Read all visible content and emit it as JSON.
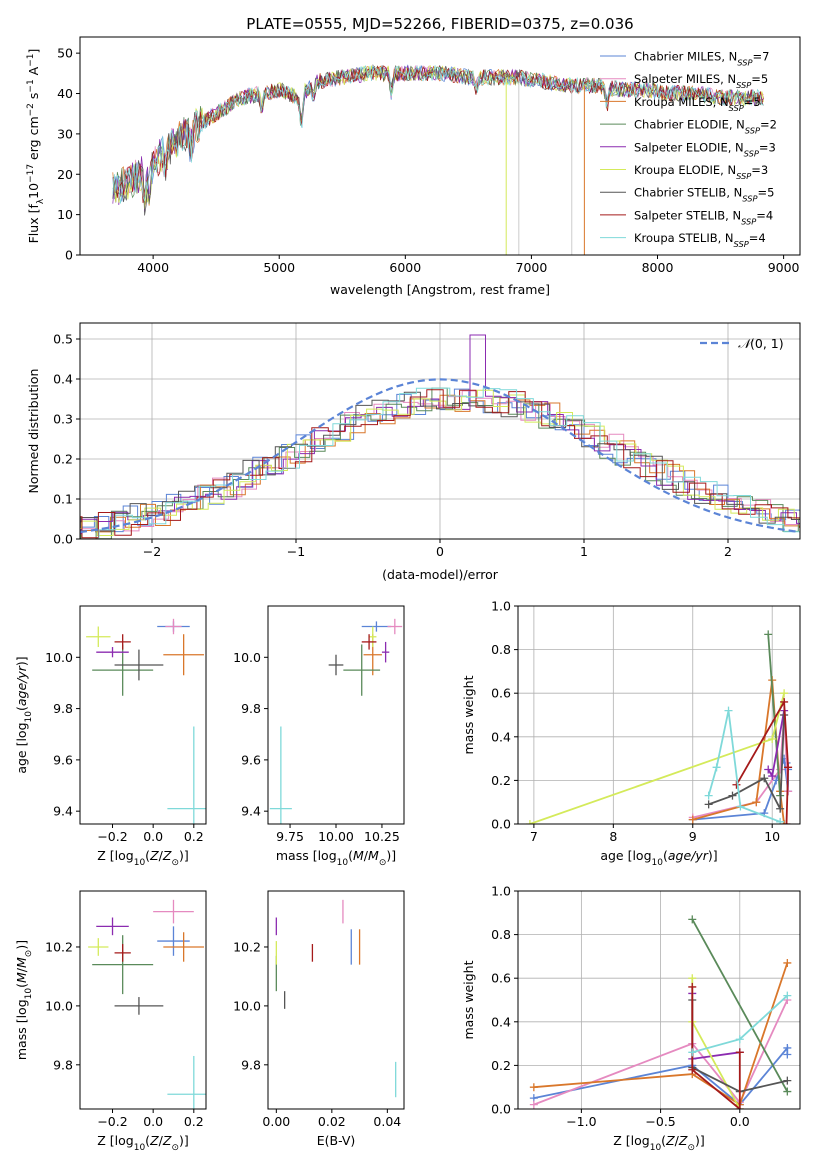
{
  "figure": {
    "title": "PLATE=0555, MJD=52266, FIBERID=0375, z=0.036"
  },
  "series_styles": [
    {
      "name": "Chabrier MILES",
      "nssp": 7,
      "color": "#5b84d6"
    },
    {
      "name": "Salpeter MILES",
      "nssp": 5,
      "color": "#e58ac0"
    },
    {
      "name": "Kroupa MILES",
      "nssp": 5,
      "color": "#d9772b"
    },
    {
      "name": "Chabrier ELODIE",
      "nssp": 2,
      "color": "#5a8a5a"
    },
    {
      "name": "Salpeter ELODIE",
      "nssp": 3,
      "color": "#8b2bb0"
    },
    {
      "name": "Kroupa ELODIE",
      "nssp": 3,
      "color": "#d4ea5a"
    },
    {
      "name": "Chabrier STELIB",
      "nssp": 5,
      "color": "#555555"
    },
    {
      "name": "Salpeter STELIB",
      "nssp": 4,
      "color": "#a51a1a"
    },
    {
      "name": "Kroupa STELIB",
      "nssp": 4,
      "color": "#7fd9d9"
    }
  ],
  "chart_data": [
    {
      "id": "spectrum",
      "type": "line",
      "xlabel": "wavelength [Angstrom, rest frame]",
      "ylabel": "Flux [f_λ10^-17 erg cm^-2 s^-1 A^-1]",
      "xlim": [
        3420,
        9130
      ],
      "ylim": [
        0,
        54
      ],
      "xticks": [
        4000,
        5000,
        6000,
        7000,
        8000,
        9000
      ],
      "yticks": [
        0,
        10,
        20,
        30,
        40,
        50
      ],
      "grid": false,
      "legend": "upper right",
      "legend_entries": [
        "Chabrier MILES, NSSP=7",
        "Salpeter MILES, NSSP=5",
        "Kroupa MILES, NSSP=5",
        "Chabrier ELODIE, NSSP=2",
        "Salpeter ELODIE, NSSP=3",
        "Kroupa ELODIE, NSSP=3",
        "Chabrier STELIB, NSSP=5",
        "Salpeter STELIB, NSSP=4",
        "Kroupa STELIB, NSSP=4"
      ],
      "continuum": {
        "x": [
          3680,
          3800,
          3950,
          4100,
          4250,
          4400,
          4550,
          4700,
          4850,
          5000,
          5150,
          5300,
          5500,
          5700,
          5900,
          6100,
          6300,
          6500,
          6700,
          6900,
          7100,
          7300,
          7500,
          7700,
          7900,
          8100,
          8300,
          8500,
          8700,
          8850
        ],
        "y": [
          16,
          18,
          21,
          26,
          30,
          33,
          36,
          39,
          40,
          41,
          39,
          43,
          44,
          45,
          45,
          45,
          45,
          44,
          44,
          44,
          43,
          42,
          42,
          41,
          41,
          40,
          40,
          39,
          39,
          39
        ]
      }
    },
    {
      "id": "residuals",
      "type": "step",
      "xlabel": "(data-model)/error",
      "ylabel": "Normed distribution",
      "xlim": [
        -2.5,
        2.5
      ],
      "ylim": [
        0,
        0.54
      ],
      "xticks": [
        -2,
        -1,
        0,
        1,
        2
      ],
      "yticks": [
        0.0,
        0.1,
        0.2,
        0.3,
        0.4,
        0.5
      ],
      "grid": true,
      "legend": "upper right",
      "legend_entries": [
        "N(0,1)"
      ],
      "gaussian": {
        "mu": 0,
        "sigma": 1
      }
    },
    {
      "id": "age_vs_Z",
      "type": "errorbar",
      "xlabel": "Z [log10(Z/Z⊙)]",
      "ylabel": "age  [log10(age/yr)]",
      "xlim": [
        -0.36,
        0.26
      ],
      "ylim": [
        9.35,
        10.2
      ],
      "xticks": [
        -0.2,
        0.0,
        0.2
      ],
      "yticks": [
        9.4,
        9.6,
        9.8,
        10.0
      ],
      "points": [
        {
          "x": 0.1,
          "y": 10.12,
          "xerr": 0.08,
          "yerr": 0.02
        },
        {
          "x": 0.1,
          "y": 10.12,
          "xerr": 0.04,
          "yerr": 0.03
        },
        {
          "x": 0.15,
          "y": 10.01,
          "xerr": 0.1,
          "yerr": 0.08
        },
        {
          "x": -0.15,
          "y": 9.95,
          "xerr": 0.15,
          "yerr": 0.1
        },
        {
          "x": -0.2,
          "y": 10.02,
          "xerr": 0.08,
          "yerr": 0.02
        },
        {
          "x": -0.27,
          "y": 10.08,
          "xerr": 0.06,
          "yerr": 0.04
        },
        {
          "x": -0.07,
          "y": 9.97,
          "xerr": 0.12,
          "yerr": 0.06
        },
        {
          "x": -0.15,
          "y": 10.06,
          "xerr": 0.04,
          "yerr": 0.03
        },
        {
          "x": 0.2,
          "y": 9.41,
          "xerr": 0.13,
          "yerr": 0.32
        }
      ]
    },
    {
      "id": "age_vs_mass",
      "type": "errorbar",
      "xlabel": "mass [log10(M/M⊙)]",
      "ylabel": "",
      "xlim": [
        9.63,
        10.37
      ],
      "ylim": [
        9.35,
        10.2
      ],
      "xticks": [
        9.75,
        10.0,
        10.25
      ],
      "yticks": [
        9.4,
        9.6,
        9.8,
        10.0
      ],
      "points": [
        {
          "x": 10.22,
          "y": 10.12,
          "xerr": 0.08,
          "yerr": 0.02
        },
        {
          "x": 10.32,
          "y": 10.12,
          "xerr": 0.04,
          "yerr": 0.03
        },
        {
          "x": 10.2,
          "y": 10.01,
          "xerr": 0.05,
          "yerr": 0.08
        },
        {
          "x": 10.14,
          "y": 9.95,
          "xerr": 0.1,
          "yerr": 0.1
        },
        {
          "x": 10.27,
          "y": 10.02,
          "xerr": 0.02,
          "yerr": 0.04
        },
        {
          "x": 10.2,
          "y": 10.08,
          "xerr": 0.02,
          "yerr": 0.04
        },
        {
          "x": 10.0,
          "y": 9.97,
          "xerr": 0.04,
          "yerr": 0.04
        },
        {
          "x": 10.18,
          "y": 10.06,
          "xerr": 0.04,
          "yerr": 0.03
        },
        {
          "x": 9.7,
          "y": 9.41,
          "xerr": 0.06,
          "yerr": 0.32
        }
      ]
    },
    {
      "id": "weight_vs_age",
      "type": "line",
      "xlabel": "age  [log10(age/yr)]",
      "ylabel": "mass weight",
      "xlim": [
        6.8,
        10.35
      ],
      "ylim": [
        0,
        1.0
      ],
      "xticks": [
        7,
        8,
        9,
        10
      ],
      "yticks": [
        0.0,
        0.2,
        0.4,
        0.6,
        0.8,
        1.0
      ],
      "grid": true,
      "series": [
        {
          "name": "Chabrier MILES",
          "x": [
            9.0,
            9.9,
            10.05,
            10.15,
            10.2,
            10.2,
            10.18
          ],
          "y": [
            0.02,
            0.05,
            0.2,
            0.3,
            0.15,
            0.25,
            0.28
          ]
        },
        {
          "name": "Salpeter MILES",
          "x": [
            9.0,
            9.8,
            10.1,
            10.15,
            10.2
          ],
          "y": [
            0.03,
            0.1,
            0.25,
            0.5,
            0.15
          ]
        },
        {
          "name": "Kroupa MILES",
          "x": [
            9.0,
            9.8,
            10.0,
            10.1,
            10.15
          ],
          "y": [
            0.02,
            0.1,
            0.66,
            0.15,
            0.0
          ]
        },
        {
          "name": "Chabrier ELODIE",
          "x": [
            9.95,
            10.1
          ],
          "y": [
            0.87,
            0.13
          ]
        },
        {
          "name": "Salpeter ELODIE",
          "x": [
            9.95,
            10.0,
            10.15
          ],
          "y": [
            0.25,
            0.22,
            0.52
          ]
        },
        {
          "name": "Kroupa ELODIE",
          "x": [
            6.95,
            10.0,
            10.15
          ],
          "y": [
            0.0,
            0.39,
            0.6
          ]
        },
        {
          "name": "Chabrier STELIB",
          "x": [
            9.2,
            9.5,
            9.9,
            10.1,
            10.15
          ],
          "y": [
            0.09,
            0.13,
            0.21,
            0.07,
            0.5
          ]
        },
        {
          "name": "Salpeter STELIB",
          "x": [
            9.55,
            10.15,
            10.2,
            10.18
          ],
          "y": [
            0.18,
            0.56,
            0.26,
            0.0
          ]
        },
        {
          "name": "Kroupa STELIB",
          "x": [
            9.2,
            9.3,
            9.45,
            9.6,
            10.1
          ],
          "y": [
            0.13,
            0.26,
            0.52,
            0.08,
            0.01
          ]
        }
      ]
    },
    {
      "id": "mass_vs_Z",
      "type": "errorbar",
      "xlabel": "Z [log10(Z/Z⊙)]",
      "ylabel": "mass [log10(M/M⊙)]",
      "xlim": [
        -0.36,
        0.26
      ],
      "ylim": [
        9.65,
        10.39
      ],
      "xticks": [
        -0.2,
        0.0,
        0.2
      ],
      "yticks": [
        9.8,
        10.0,
        10.2
      ],
      "points": [
        {
          "x": 0.1,
          "y": 10.22,
          "xerr": 0.08,
          "yerr": 0.05
        },
        {
          "x": 0.1,
          "y": 10.32,
          "xerr": 0.1,
          "yerr": 0.04
        },
        {
          "x": 0.15,
          "y": 10.2,
          "xerr": 0.1,
          "yerr": 0.05
        },
        {
          "x": -0.15,
          "y": 10.14,
          "xerr": 0.15,
          "yerr": 0.1
        },
        {
          "x": -0.2,
          "y": 10.27,
          "xerr": 0.08,
          "yerr": 0.03
        },
        {
          "x": -0.27,
          "y": 10.2,
          "xerr": 0.05,
          "yerr": 0.03
        },
        {
          "x": -0.07,
          "y": 10.0,
          "xerr": 0.12,
          "yerr": 0.03
        },
        {
          "x": -0.15,
          "y": 10.18,
          "xerr": 0.04,
          "yerr": 0.03
        },
        {
          "x": 0.2,
          "y": 9.7,
          "xerr": 0.13,
          "yerr": 0.13
        }
      ]
    },
    {
      "id": "mass_vs_ebv",
      "type": "errorbar",
      "xlabel": "E(B-V)",
      "ylabel": "",
      "xlim": [
        -0.003,
        0.046
      ],
      "ylim": [
        9.65,
        10.39
      ],
      "xticks": [
        0.0,
        0.02,
        0.04
      ],
      "yticks": [
        9.8,
        10.0,
        10.2
      ],
      "points": [
        {
          "x": 0.027,
          "y": 10.2,
          "xerr": 0,
          "yerr": 0.06
        },
        {
          "x": 0.024,
          "y": 10.32,
          "xerr": 0,
          "yerr": 0.04
        },
        {
          "x": 0.03,
          "y": 10.2,
          "xerr": 0,
          "yerr": 0.06
        },
        {
          "x": 0.0,
          "y": 10.11,
          "xerr": 0,
          "yerr": 0.06
        },
        {
          "x": 0.0,
          "y": 10.27,
          "xerr": 0,
          "yerr": 0.03
        },
        {
          "x": 0.0,
          "y": 10.18,
          "xerr": 0,
          "yerr": 0.04
        },
        {
          "x": 0.003,
          "y": 10.02,
          "xerr": 0,
          "yerr": 0.03
        },
        {
          "x": 0.013,
          "y": 10.18,
          "xerr": 0,
          "yerr": 0.03
        },
        {
          "x": 0.043,
          "y": 9.75,
          "xerr": 0,
          "yerr": 0.06
        }
      ]
    },
    {
      "id": "weight_vs_Z",
      "type": "line",
      "xlabel": "Z [log10(Z/Z⊙)]",
      "ylabel": "mass weight",
      "xlim": [
        -1.4,
        0.38
      ],
      "ylim": [
        0,
        1.0
      ],
      "xticks": [
        -1.0,
        -0.5,
        0.0
      ],
      "yticks": [
        0.0,
        0.2,
        0.4,
        0.6,
        0.8,
        1.0
      ],
      "grid": true,
      "series": [
        {
          "name": "Chabrier MILES",
          "x": [
            -1.3,
            -0.3,
            0.0,
            0.3,
            0.3
          ],
          "y": [
            0.05,
            0.2,
            0.02,
            0.28,
            0.25
          ]
        },
        {
          "name": "Salpeter MILES",
          "x": [
            -1.3,
            -0.3,
            0.0,
            0.3
          ],
          "y": [
            0.02,
            0.3,
            0.03,
            0.5
          ]
        },
        {
          "name": "Kroupa MILES",
          "x": [
            -1.3,
            -0.3,
            0.0,
            0.3
          ],
          "y": [
            0.1,
            0.16,
            0.02,
            0.67
          ]
        },
        {
          "name": "Chabrier ELODIE",
          "x": [
            -0.3,
            0.3
          ],
          "y": [
            0.87,
            0.08
          ]
        },
        {
          "name": "Salpeter ELODIE",
          "x": [
            -0.3,
            -0.3,
            0.0
          ],
          "y": [
            0.53,
            0.23,
            0.26
          ]
        },
        {
          "name": "Kroupa ELODIE",
          "x": [
            -0.3,
            -0.3,
            0.0
          ],
          "y": [
            0.6,
            0.4,
            0.0
          ]
        },
        {
          "name": "Chabrier STELIB",
          "x": [
            -0.3,
            -0.3,
            0.0,
            0.3
          ],
          "y": [
            0.5,
            0.19,
            0.08,
            0.13
          ]
        },
        {
          "name": "Salpeter STELIB",
          "x": [
            -0.3,
            -0.3,
            0.0,
            0.0
          ],
          "y": [
            0.56,
            0.18,
            0.0,
            0.26
          ]
        },
        {
          "name": "Kroupa STELIB",
          "x": [
            -0.3,
            0.0,
            0.3
          ],
          "y": [
            0.26,
            0.32,
            0.52
          ]
        }
      ]
    }
  ]
}
